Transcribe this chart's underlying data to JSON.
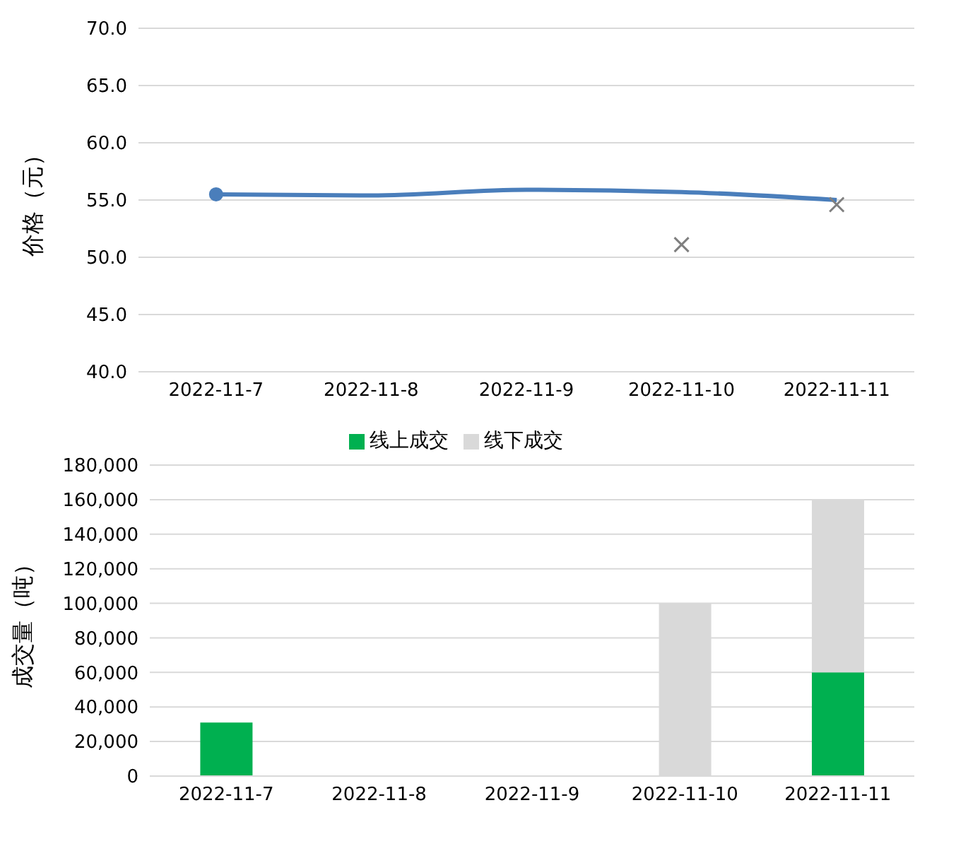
{
  "chart_data": [
    {
      "type": "line",
      "ylabel": "价格（元）",
      "categories": [
        "2022-11-7",
        "2022-11-8",
        "2022-11-9",
        "2022-11-10",
        "2022-11-11"
      ],
      "ylim": [
        40,
        70
      ],
      "yticks": [
        {
          "value": 40,
          "label": "40.0"
        },
        {
          "value": 45,
          "label": "45.0"
        },
        {
          "value": 50,
          "label": "50.0"
        },
        {
          "value": 55,
          "label": "55.0"
        },
        {
          "value": 60,
          "label": "60.0"
        },
        {
          "value": 65,
          "label": "65.0"
        },
        {
          "value": 70,
          "label": "70.0"
        }
      ],
      "grid": "y",
      "legend": false,
      "series": [
        {
          "type": "line",
          "color": "#4a7ebb",
          "marker": "none",
          "line_style": "solid",
          "values": [
            55.5,
            55.4,
            55.9,
            55.7,
            55.0
          ]
        },
        {
          "type": "scatter",
          "color": "#4a7ebb",
          "marker": "circle",
          "values": [
            55.5,
            null,
            null,
            null,
            null
          ]
        },
        {
          "type": "scatter",
          "color": "#7f7f7f",
          "marker": "cross",
          "values": [
            null,
            null,
            null,
            51.1,
            54.6
          ]
        }
      ]
    },
    {
      "type": "bar",
      "stacked": true,
      "ylabel": "成交量（吨）",
      "categories": [
        "2022-11-7",
        "2022-11-8",
        "2022-11-9",
        "2022-11-10",
        "2022-11-11"
      ],
      "ylim": [
        0,
        180000
      ],
      "yticks": [
        0,
        {
          "value": 20000,
          "label": "20,000"
        },
        {
          "value": 40000,
          "label": "40,000"
        },
        {
          "value": 60000,
          "label": "60,000"
        },
        {
          "value": 80000,
          "label": "80,000"
        },
        {
          "value": 100000,
          "label": "100,000"
        },
        {
          "value": 120000,
          "label": "120,000"
        },
        {
          "value": 140000,
          "label": "140,000"
        },
        {
          "value": 160000,
          "label": "160,000"
        },
        {
          "value": 180000,
          "label": "180,000"
        }
      ],
      "grid": "y",
      "legend": "top",
      "series": [
        {
          "name": "线上成交",
          "color": "#00b050",
          "values": [
            31000,
            null,
            null,
            null,
            60000
          ]
        },
        {
          "name": "线下成交",
          "color": "#d9d9d9",
          "values": [
            null,
            null,
            null,
            100000,
            100000
          ]
        }
      ]
    }
  ]
}
